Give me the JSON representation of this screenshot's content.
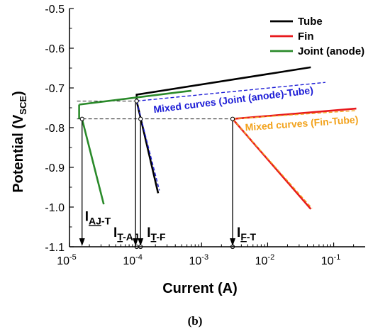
{
  "caption": "(b)",
  "chart_data": {
    "type": "line",
    "xlabel": "Current (A)",
    "ylabel": {
      "main": "Potential (V",
      "sub": "SCE",
      "close": ")"
    },
    "xscale": "log",
    "xlim": [
      1e-05,
      0.3
    ],
    "ylim": [
      -1.1,
      -0.5
    ],
    "xticks": [
      {
        "value": 1e-05,
        "base": "10",
        "exp": "-5"
      },
      {
        "value": 0.0001,
        "base": "10",
        "exp": "-4"
      },
      {
        "value": 0.001,
        "base": "10",
        "exp": "-3"
      },
      {
        "value": 0.01,
        "base": "10",
        "exp": "-2"
      },
      {
        "value": 0.1,
        "base": "10",
        "exp": "-1"
      }
    ],
    "yticks": [
      {
        "value": -0.5,
        "label": "-0.5"
      },
      {
        "value": -0.6,
        "label": "-0.6"
      },
      {
        "value": -0.7,
        "label": "-0.7"
      },
      {
        "value": -0.8,
        "label": "-0.8"
      },
      {
        "value": -0.9,
        "label": "-0.9"
      },
      {
        "value": -1.0,
        "label": "-1.0"
      },
      {
        "value": -1.1,
        "label": "-1.1"
      }
    ],
    "legend": {
      "position": "top-right",
      "entries": [
        {
          "name": "Tube",
          "color": "#000000"
        },
        {
          "name": "Fin",
          "color": "#e8191c"
        },
        {
          "name": "Joint (anode)",
          "color": "#2a8a2a"
        }
      ]
    },
    "series": [
      {
        "name": "Tube",
        "color": "#000000",
        "style": "solid",
        "branches": [
          {
            "x": [
              0.000104,
              0.000104,
              0.045
            ],
            "y": [
              -0.733,
              -0.717,
              -0.648
            ]
          },
          {
            "x": [
              0.000104,
              0.00022
            ],
            "y": [
              -0.733,
              -0.965
            ]
          }
        ]
      },
      {
        "name": "Fin",
        "color": "#e8191c",
        "style": "solid",
        "branches": [
          {
            "x": [
              0.00295,
              0.22
            ],
            "y": [
              -0.778,
              -0.752
            ]
          },
          {
            "x": [
              0.00295,
              0.045
            ],
            "y": [
              -0.778,
              -1.005
            ]
          }
        ]
      },
      {
        "name": "Joint (anode)",
        "color": "#2a8a2a",
        "style": "solid",
        "branches": [
          {
            "x": [
              1.4e-05,
              1.4e-05
            ],
            "y": [
              -0.778,
              -0.742
            ]
          },
          {
            "x": [
              1.4e-05,
              0.0007
            ],
            "y": [
              -0.742,
              -0.707
            ]
          },
          {
            "x": [
              1.55e-05,
              3.3e-05
            ],
            "y": [
              -0.778,
              -0.993
            ]
          }
        ]
      },
      {
        "name": "Mixed curves (Joint (anode)-Tube)",
        "color": "#1c1cd6",
        "style": "dashed",
        "branches": [
          {
            "x": [
              0.000104,
              0.075
            ],
            "y": [
              -0.733,
              -0.686
            ]
          },
          {
            "x": [
              0.000104,
              0.00023
            ],
            "y": [
              -0.733,
              -0.958
            ]
          }
        ]
      },
      {
        "name": "Mixed curves (Fin-Tube)",
        "color": "#f2a21c",
        "style": "dashed",
        "branches": [
          {
            "x": [
              0.00295,
              0.22
            ],
            "y": [
              -0.778,
              -0.757
            ]
          },
          {
            "x": [
              0.00295,
              0.047
            ],
            "y": [
              -0.778,
              -1.003
            ]
          }
        ]
      }
    ],
    "reference_lines": [
      {
        "y": -0.733,
        "x_from": 1.3e-05,
        "x_to": 0.000104
      },
      {
        "y": -0.778,
        "x_from": 1.3e-05,
        "x_to": 0.00295
      }
    ],
    "points": [
      {
        "x": 1.55e-05,
        "y": -0.778
      },
      {
        "x": 0.000104,
        "y": -0.733
      },
      {
        "x": 0.000119,
        "y": -0.778
      },
      {
        "x": 0.00295,
        "y": -0.778
      },
      {
        "x": 0.000104,
        "y": -1.1
      },
      {
        "x": 0.000119,
        "y": -1.1
      },
      {
        "x": 0.00295,
        "y": -1.1
      }
    ],
    "arrows": [
      {
        "x": 1.55e-05,
        "from_y": -0.778,
        "to_y": -1.1
      },
      {
        "x": 0.0001,
        "from_y": -0.733,
        "to_y": -1.1
      },
      {
        "x": 0.000119,
        "from_y": -0.778,
        "to_y": -1.1
      },
      {
        "x": 0.00295,
        "from_y": -0.778,
        "to_y": -1.1
      }
    ],
    "annotations": [
      {
        "id": "joint-tube",
        "text": "Mixed curves (Joint (anode)-Tube)",
        "color": "#1c1cd6",
        "x": 0.00019,
        "y": -0.763,
        "angle": -7
      },
      {
        "id": "fin-tube",
        "text": "Mixed curves (Fin-Tube)",
        "color": "#f2a21c",
        "x": 0.0046,
        "y": -0.808,
        "angle": -4
      }
    ],
    "current_labels": [
      {
        "main": "I",
        "sub": "AJ",
        "tail": "-T",
        "x": 1.55e-05,
        "y": -1.035
      },
      {
        "main": "I",
        "sub": "T",
        "tail": "-AJ",
        "x": 4.2e-05,
        "y": -1.075
      },
      {
        "main": "I",
        "sub": "T",
        "tail": "-F",
        "x": 0.000135,
        "y": -1.075
      },
      {
        "main": "I",
        "sub": "F",
        "tail": "-T",
        "x": 0.0031,
        "y": -1.075
      }
    ]
  }
}
